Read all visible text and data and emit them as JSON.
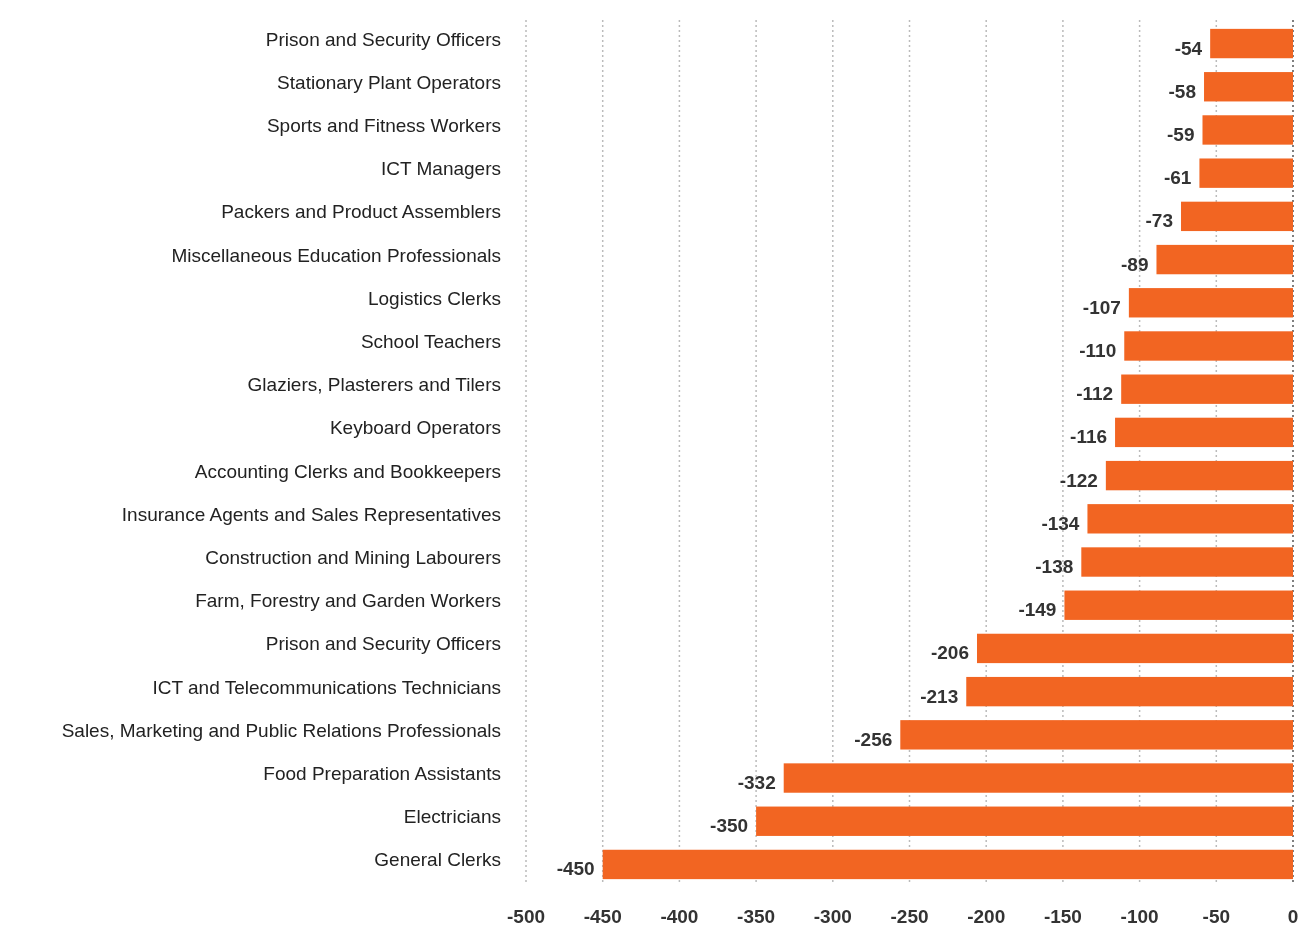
{
  "chart_data": {
    "type": "bar",
    "orientation": "horizontal",
    "categories": [
      "Prison and Security Officers",
      "Stationary Plant Operators",
      "Sports and Fitness Workers",
      "ICT Managers",
      "Packers and Product Assemblers",
      "Miscellaneous Education Professionals",
      "Logistics Clerks",
      "School Teachers",
      "Glaziers, Plasterers and Tilers",
      "Keyboard Operators",
      "Accounting Clerks and Bookkeepers",
      "Insurance Agents and Sales Representatives",
      "Construction and Mining Labourers",
      "Farm, Forestry and Garden Workers",
      "Prison and Security Officers",
      "ICT and Telecommunications Technicians",
      "Sales, Marketing and Public Relations Professionals",
      "Food Preparation Assistants",
      "Electricians",
      "General Clerks"
    ],
    "values": [
      -54,
      -58,
      -59,
      -61,
      -73,
      -89,
      -107,
      -110,
      -112,
      -116,
      -122,
      -134,
      -138,
      -149,
      -206,
      -213,
      -256,
      -332,
      -350,
      -450
    ],
    "color": "#f26522",
    "xlim": [
      -500,
      0
    ],
    "xticks": [
      -500,
      -450,
      -400,
      -350,
      -300,
      -250,
      -200,
      -150,
      -100,
      -50,
      0
    ],
    "grid": "x",
    "data_labels": true
  }
}
